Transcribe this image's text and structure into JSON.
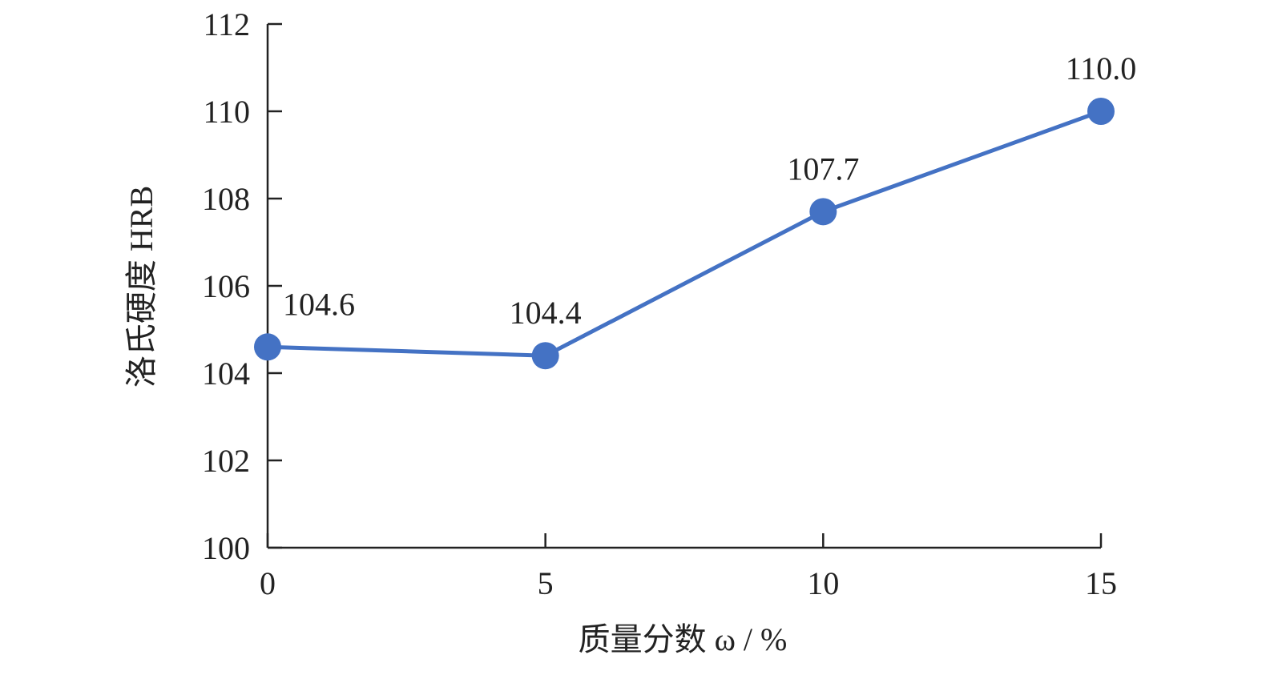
{
  "chart_data": {
    "type": "line",
    "x": [
      0,
      5,
      10,
      15
    ],
    "series": [
      {
        "color": "#4472c4",
        "values": [
          104.6,
          104.4,
          107.7,
          110.0
        ],
        "value_labels": [
          "104.6",
          "104.4",
          "107.7",
          "110.0"
        ]
      }
    ],
    "xlabel": "质量分数 ω / %",
    "ylabel": "洛氏硬度 HRB",
    "xlim": [
      0,
      15
    ],
    "xticks": [
      0,
      5,
      10,
      15
    ],
    "ylim": [
      100,
      112
    ],
    "yticks": [
      100,
      102,
      104,
      106,
      108,
      110,
      112
    ],
    "grid": false
  }
}
